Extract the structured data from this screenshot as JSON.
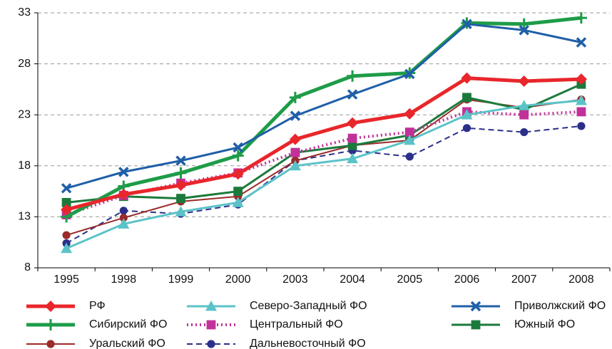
{
  "chart_data": {
    "type": "line",
    "categories": [
      "1995",
      "1998",
      "1999",
      "2000",
      "2003",
      "2004",
      "2005",
      "2006",
      "2007",
      "2008"
    ],
    "ylim": [
      8,
      33
    ],
    "yticks": [
      8,
      13,
      18,
      23,
      28,
      33
    ],
    "grid": true,
    "series": [
      {
        "name": "РФ",
        "color": "#e8262b",
        "marker": "diamond",
        "width": 5,
        "dash": "solid",
        "values": [
          13.7,
          15.2,
          16.1,
          17.2,
          20.6,
          22.2,
          23.1,
          26.6,
          26.3,
          26.5
        ]
      },
      {
        "name": "Северо-Западный ФО",
        "color": "#5bc3c8",
        "marker": "triangle",
        "width": 3,
        "dash": "solid",
        "values": [
          9.9,
          12.3,
          13.5,
          14.4,
          18.0,
          18.7,
          20.5,
          23.0,
          23.9,
          24.4
        ]
      },
      {
        "name": "Приволжский ФО",
        "color": "#1f5fa8",
        "marker": "cross",
        "width": 3,
        "dash": "solid",
        "values": [
          15.8,
          17.4,
          18.5,
          19.8,
          22.9,
          25.0,
          27.0,
          31.9,
          31.3,
          30.1
        ]
      },
      {
        "name": "Сибирский ФО",
        "color": "#1e9c48",
        "marker": "plus",
        "width": 5,
        "dash": "solid",
        "values": [
          13.0,
          16.0,
          17.3,
          19.0,
          24.7,
          26.8,
          27.1,
          32.0,
          31.9,
          32.5
        ]
      },
      {
        "name": "Центральный ФО",
        "color": "#c2309a",
        "marker": "square",
        "width": 4,
        "dash": "dotted",
        "values": [
          13.2,
          15.1,
          16.3,
          17.3,
          19.3,
          20.7,
          21.3,
          23.3,
          23.0,
          23.3
        ]
      },
      {
        "name": "Южный ФО",
        "color": "#1b7a3b",
        "marker": "square",
        "width": 3,
        "dash": "solid",
        "values": [
          14.4,
          15.0,
          14.8,
          15.5,
          19.3,
          20.0,
          21.0,
          24.7,
          23.5,
          26.0
        ]
      },
      {
        "name": "Уральский ФО",
        "color": "#9b2a2a",
        "marker": "circle",
        "width": 2,
        "dash": "solid",
        "values": [
          11.2,
          12.9,
          14.5,
          15.0,
          18.5,
          20.0,
          20.5,
          24.5,
          23.7,
          24.5
        ]
      },
      {
        "name": "Дальневосточный ФО",
        "color": "#2b2f8a",
        "marker": "circle",
        "width": 2,
        "dash": "dashed",
        "values": [
          10.4,
          13.6,
          13.3,
          14.2,
          18.5,
          19.5,
          18.9,
          21.7,
          21.3,
          21.9
        ]
      }
    ]
  }
}
